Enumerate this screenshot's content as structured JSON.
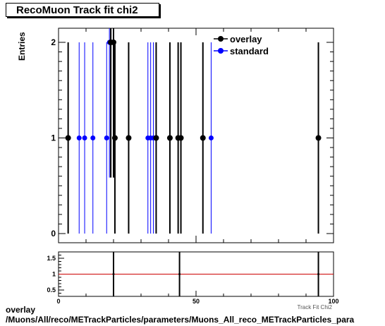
{
  "title": "RecoMuon Track fit chi2",
  "ylabel": "Entries",
  "xlabel_partial": "Track Fit Chi2",
  "caption_line1": "overlay",
  "caption_line2": "/Muons/All/reco/METrackParticles/parameters/Muons_All_reco_METrackParticles_para",
  "colors": {
    "overlay": "#000000",
    "standard": "#0000ff",
    "ratio_line": "#cc0000",
    "axis": "#000000"
  },
  "chart_data": [
    {
      "type": "scatter",
      "panel": "main",
      "title": "RecoMuon Track fit chi2",
      "ylabel": "Entries",
      "xlim": [
        0,
        100
      ],
      "ylim": [
        0,
        2.1
      ],
      "yticks": [
        "0",
        "1",
        "2"
      ],
      "legend_position": "top-right",
      "series": [
        {
          "name": "overlay",
          "points": [
            {
              "x": 3.5,
              "y": 1
            },
            {
              "x": 19,
              "y": 2
            },
            {
              "x": 20,
              "y": 2
            },
            {
              "x": 20.5,
              "y": 1
            },
            {
              "x": 25.5,
              "y": 1
            },
            {
              "x": 35.5,
              "y": 1
            },
            {
              "x": 40.5,
              "y": 1
            },
            {
              "x": 43.5,
              "y": 1
            },
            {
              "x": 44.5,
              "y": 1
            },
            {
              "x": 52.5,
              "y": 1
            },
            {
              "x": 94.5,
              "y": 1
            }
          ]
        },
        {
          "name": "standard",
          "points": [
            {
              "x": 7.5,
              "y": 1
            },
            {
              "x": 9.5,
              "y": 1
            },
            {
              "x": 12.5,
              "y": 1
            },
            {
              "x": 17.5,
              "y": 1
            },
            {
              "x": 18.5,
              "y": 2
            },
            {
              "x": 32.5,
              "y": 1
            },
            {
              "x": 33.5,
              "y": 1
            },
            {
              "x": 34.5,
              "y": 1
            },
            {
              "x": 55.5,
              "y": 1
            }
          ]
        }
      ]
    },
    {
      "type": "scatter",
      "panel": "ratio",
      "xlim": [
        0,
        100
      ],
      "ylim": [
        0.3,
        1.7
      ],
      "xticks": [
        "0",
        "50",
        "100"
      ],
      "yticks": [
        "0.5",
        "1",
        "1.5"
      ],
      "reference_line": 1,
      "series": [
        {
          "name": "ratio",
          "points": [
            {
              "x": 20,
              "y": 1
            },
            {
              "x": 44,
              "y": 1
            },
            {
              "x": 94.5,
              "y": 1
            }
          ]
        }
      ]
    }
  ]
}
